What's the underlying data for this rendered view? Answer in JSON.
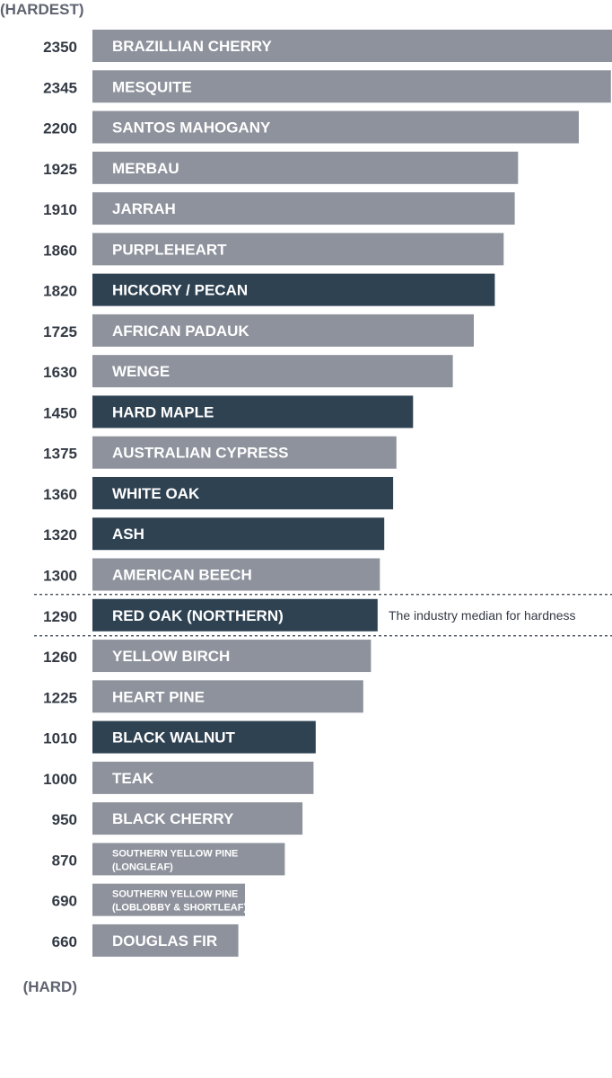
{
  "chart_data": {
    "type": "bar",
    "orientation": "horizontal",
    "top_label": "(HARDEST)",
    "bottom_label": "(HARD)",
    "categories": [
      "BRAZILLIAN CHERRY",
      "MESQUITE",
      "SANTOS MAHOGANY",
      "MERBAU",
      "JARRAH",
      "PURPLEHEART",
      "HICKORY / PECAN",
      "AFRICAN PADAUK",
      "WENGE",
      "HARD MAPLE",
      "AUSTRALIAN CYPRESS",
      "WHITE OAK",
      "ASH",
      "AMERICAN BEECH",
      "RED OAK (NORTHERN)",
      "YELLOW BIRCH",
      "HEART PINE",
      "BLACK WALNUT",
      "TEAK",
      "BLACK CHERRY",
      "SOUTHERN YELLOW PINE (LONGLEAF)",
      "SOUTHERN YELLOW PINE (LOBLOBBY & SHORTLEAF)",
      "DOUGLAS FIR"
    ],
    "label_lines": [
      [
        "BRAZILLIAN CHERRY"
      ],
      [
        "MESQUITE"
      ],
      [
        "SANTOS MAHOGANY"
      ],
      [
        "MERBAU"
      ],
      [
        "JARRAH"
      ],
      [
        "PURPLEHEART"
      ],
      [
        "HICKORY / PECAN"
      ],
      [
        "AFRICAN PADAUK"
      ],
      [
        "WENGE"
      ],
      [
        "HARD MAPLE"
      ],
      [
        "AUSTRALIAN CYPRESS"
      ],
      [
        "WHITE OAK"
      ],
      [
        "ASH"
      ],
      [
        "AMERICAN BEECH"
      ],
      [
        "RED OAK (NORTHERN)"
      ],
      [
        "YELLOW BIRCH"
      ],
      [
        "HEART PINE"
      ],
      [
        "BLACK WALNUT"
      ],
      [
        "TEAK"
      ],
      [
        "BLACK CHERRY"
      ],
      [
        "SOUTHERN YELLOW PINE",
        "(LONGLEAF)"
      ],
      [
        "SOUTHERN YELLOW PINE",
        "(LOBLOBBY & SHORTLEAF)"
      ],
      [
        "DOUGLAS FIR"
      ]
    ],
    "values": [
      2350,
      2345,
      2200,
      1925,
      1910,
      1860,
      1820,
      1725,
      1630,
      1450,
      1375,
      1360,
      1320,
      1300,
      1290,
      1260,
      1225,
      1010,
      1000,
      950,
      870,
      690,
      660
    ],
    "highlighted": [
      "HICKORY / PECAN",
      "HARD MAPLE",
      "WHITE OAK",
      "ASH",
      "RED OAK (NORTHERN)",
      "BLACK WALNUT"
    ],
    "median_annotation": {
      "category": "RED OAK (NORTHERN)",
      "text": "The industry median for hardness"
    },
    "colors": {
      "default_bar": "#8e929c",
      "highlight_bar": "#2f4252",
      "median_line": "#333a44"
    },
    "grid": false,
    "legend": "none"
  }
}
